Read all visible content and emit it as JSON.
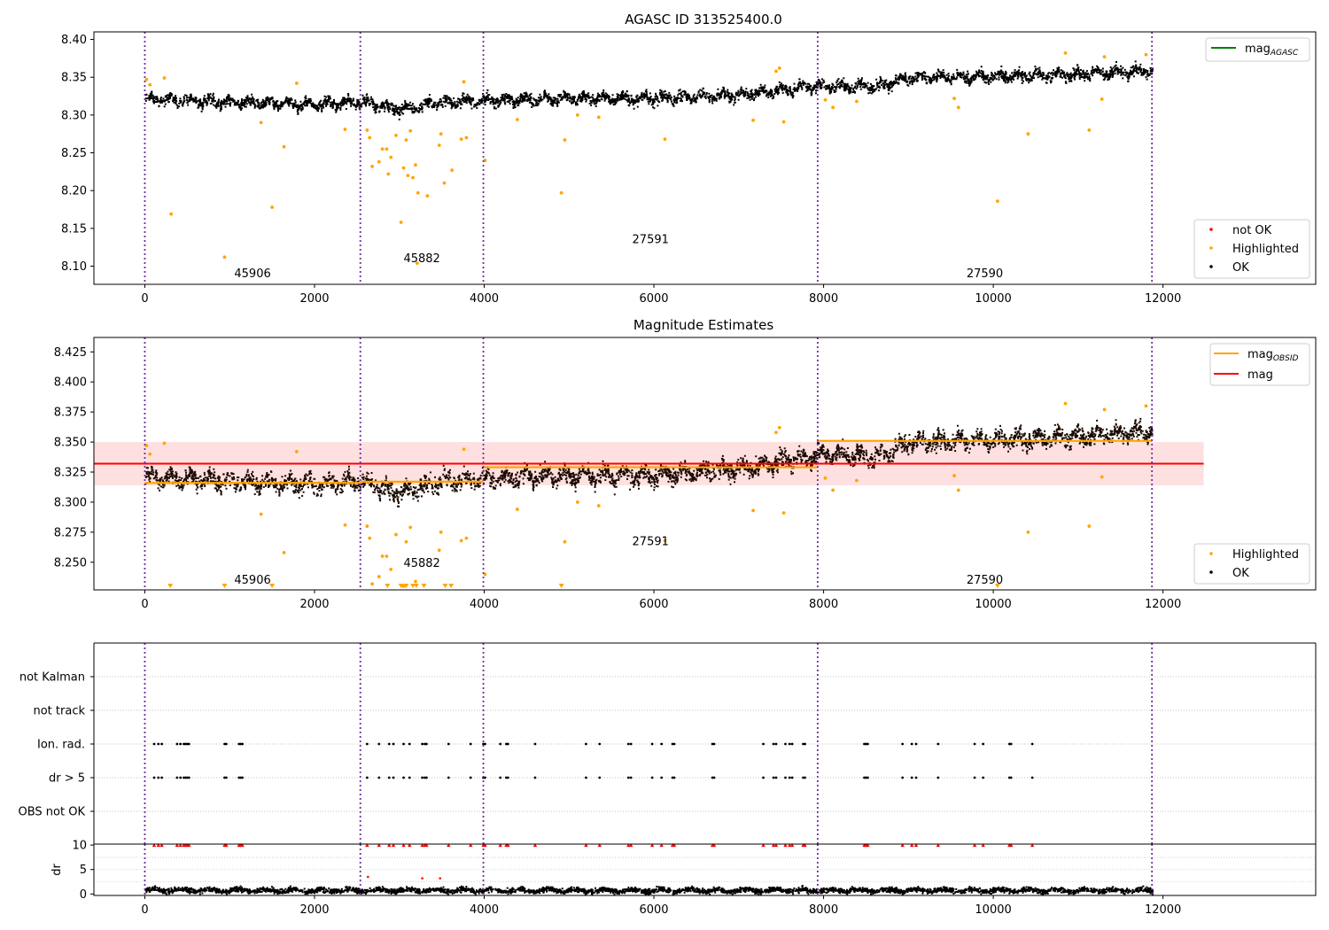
{
  "chart_data": [
    {
      "type": "scatter",
      "title": "AGASC ID 313525400.0",
      "xlabel": "",
      "ylabel": "",
      "xlim": [
        -600,
        13800
      ],
      "ylim": [
        8.076,
        8.41
      ],
      "grid": false,
      "x_ticks": [
        0,
        2000,
        4000,
        6000,
        8000,
        10000,
        12000
      ],
      "x_tick_labels": [
        "0",
        "2000",
        "4000",
        "6000",
        "8000",
        "10000",
        "12000"
      ],
      "y_ticks": [
        8.1,
        8.15,
        8.2,
        8.25,
        8.3,
        8.35,
        8.4
      ],
      "y_tick_labels": [
        "8.10",
        "8.15",
        "8.20",
        "8.25",
        "8.30",
        "8.35",
        "8.40"
      ],
      "obsid_boundaries": [
        0,
        2540,
        3990,
        7930,
        11870
      ],
      "obsid_labels": [
        {
          "text": "45906",
          "x": 1270,
          "y": 8.09
        },
        {
          "text": "45882",
          "x": 3265,
          "y": 8.11
        },
        {
          "text": "27591",
          "x": 5960,
          "y": 8.135
        },
        {
          "text": "27590",
          "x": 9900,
          "y": 8.09
        }
      ],
      "ok_trend": [
        {
          "x": 0,
          "y": 8.322
        },
        {
          "x": 1000,
          "y": 8.318
        },
        {
          "x": 2000,
          "y": 8.315
        },
        {
          "x": 2540,
          "y": 8.318
        },
        {
          "x": 3000,
          "y": 8.308
        },
        {
          "x": 3500,
          "y": 8.318
        },
        {
          "x": 4000,
          "y": 8.32
        },
        {
          "x": 5000,
          "y": 8.323
        },
        {
          "x": 6000,
          "y": 8.323
        },
        {
          "x": 7000,
          "y": 8.328
        },
        {
          "x": 7930,
          "y": 8.34
        },
        {
          "x": 8600,
          "y": 8.338
        },
        {
          "x": 9000,
          "y": 8.35
        },
        {
          "x": 10000,
          "y": 8.352
        },
        {
          "x": 11000,
          "y": 8.355
        },
        {
          "x": 11870,
          "y": 8.36
        }
      ],
      "ok_spread": 0.011,
      "highlighted_points": [
        [
          20,
          8.347
        ],
        [
          60,
          8.34
        ],
        [
          230,
          8.349
        ],
        [
          310,
          8.169
        ],
        [
          940,
          8.112
        ],
        [
          1370,
          8.29
        ],
        [
          1500,
          8.178
        ],
        [
          1640,
          8.258
        ],
        [
          1790,
          8.342
        ],
        [
          2360,
          8.281
        ],
        [
          2620,
          8.28
        ],
        [
          2650,
          8.27
        ],
        [
          2680,
          8.232
        ],
        [
          2760,
          8.238
        ],
        [
          2800,
          8.255
        ],
        [
          2850,
          8.255
        ],
        [
          2870,
          8.222
        ],
        [
          2900,
          8.244
        ],
        [
          2960,
          8.273
        ],
        [
          3020,
          8.158
        ],
        [
          3050,
          8.23
        ],
        [
          3080,
          8.267
        ],
        [
          3100,
          8.22
        ],
        [
          3130,
          8.279
        ],
        [
          3160,
          8.217
        ],
        [
          3190,
          8.234
        ],
        [
          3210,
          8.104
        ],
        [
          3220,
          8.197
        ],
        [
          3330,
          8.193
        ],
        [
          3470,
          8.26
        ],
        [
          3490,
          8.275
        ],
        [
          3530,
          8.21
        ],
        [
          3620,
          8.227
        ],
        [
          3730,
          8.268
        ],
        [
          3760,
          8.344
        ],
        [
          3790,
          8.27
        ],
        [
          4010,
          8.24
        ],
        [
          4390,
          8.294
        ],
        [
          4910,
          8.197
        ],
        [
          4950,
          8.267
        ],
        [
          5100,
          8.3
        ],
        [
          5350,
          8.297
        ],
        [
          6130,
          8.268
        ],
        [
          7170,
          8.293
        ],
        [
          7440,
          8.358
        ],
        [
          7480,
          8.362
        ],
        [
          7530,
          8.291
        ],
        [
          8020,
          8.32
        ],
        [
          8110,
          8.31
        ],
        [
          8390,
          8.318
        ],
        [
          9540,
          8.322
        ],
        [
          9590,
          8.31
        ],
        [
          10050,
          8.186
        ],
        [
          10410,
          8.275
        ],
        [
          10850,
          8.382
        ],
        [
          11130,
          8.28
        ],
        [
          11280,
          8.321
        ],
        [
          11310,
          8.377
        ],
        [
          11800,
          8.38
        ]
      ],
      "legends": [
        {
          "placement": "upper right",
          "entries": [
            {
              "label": "mag",
              "subscript": "AGASC",
              "color": "#008000",
              "kind": "line"
            }
          ]
        },
        {
          "placement": "lower right",
          "entries": [
            {
              "label": "not OK",
              "color": "#ff0000",
              "kind": "marker"
            },
            {
              "label": "Highlighted",
              "color": "#ffa500",
              "kind": "marker"
            },
            {
              "label": "OK",
              "color": "#000000",
              "kind": "marker"
            }
          ]
        }
      ]
    },
    {
      "type": "scatter",
      "title": "Magnitude Estimates",
      "xlabel": "",
      "ylabel": "",
      "xlim": [
        -600,
        13800
      ],
      "ylim": [
        8.227,
        8.437
      ],
      "grid": false,
      "x_ticks": [
        0,
        2000,
        4000,
        6000,
        8000,
        10000,
        12000
      ],
      "x_tick_labels": [
        "0",
        "2000",
        "4000",
        "6000",
        "8000",
        "10000",
        "12000"
      ],
      "y_ticks": [
        8.25,
        8.275,
        8.3,
        8.325,
        8.35,
        8.375,
        8.4,
        8.425
      ],
      "y_tick_labels": [
        "8.250",
        "8.275",
        "8.300",
        "8.325",
        "8.350",
        "8.375",
        "8.400",
        "8.425"
      ],
      "mag": {
        "value": 8.332,
        "band": [
          8.314,
          8.35
        ],
        "x_range": [
          -600,
          12480
        ],
        "color": "#ff0000"
      },
      "mag_obsid": [
        {
          "x_range": [
            0,
            2540
          ],
          "value": 8.316
        },
        {
          "x_range": [
            2540,
            3990
          ],
          "value": 8.317
        },
        {
          "x_range": [
            3990,
            7930
          ],
          "value": 8.329
        },
        {
          "x_range": [
            7930,
            11870
          ],
          "value": 8.351
        }
      ],
      "mag_obsid_color": "#ffa500",
      "below_range_markers": [
        300,
        940,
        1500,
        2860,
        3020,
        3080,
        3160,
        3200,
        3290,
        3540,
        3610,
        4910,
        10050
      ],
      "obsid_labels": [
        {
          "text": "45906",
          "x": 1270,
          "y": 8.235
        },
        {
          "text": "45882",
          "x": 3265,
          "y": 8.249
        },
        {
          "text": "27591",
          "x": 5960,
          "y": 8.267
        },
        {
          "text": "27590",
          "x": 9900,
          "y": 8.235
        }
      ],
      "legends": [
        {
          "placement": "upper right",
          "entries": [
            {
              "label": "mag",
              "subscript": "OBSID",
              "color": "#ffa500",
              "kind": "line"
            },
            {
              "label": "mag",
              "color": "#ff0000",
              "kind": "line"
            }
          ]
        },
        {
          "placement": "lower right",
          "entries": [
            {
              "label": "Highlighted",
              "color": "#ffa500",
              "kind": "marker"
            },
            {
              "label": "OK",
              "color": "#000000",
              "kind": "marker"
            }
          ]
        }
      ]
    },
    {
      "type": "scatter",
      "title": "",
      "xlabel": "",
      "ylabel": "",
      "xlim": [
        -600,
        13800
      ],
      "categories": [
        "not Kalman",
        "not track",
        "Ion. rad.",
        "dr > 5",
        "OBS not OK"
      ],
      "grid": true,
      "flag_events_x": [
        110,
        160,
        200,
        380,
        420,
        460,
        480,
        500,
        520,
        940,
        960,
        1110,
        1130,
        1150,
        2620,
        2760,
        2880,
        2930,
        3050,
        3120,
        3270,
        3300,
        3320,
        3580,
        3840,
        3990,
        4010,
        4190,
        4260,
        4280,
        4600,
        5200,
        5360,
        5700,
        5730,
        5980,
        6090,
        6220,
        6240,
        6690,
        6710,
        7290,
        7410,
        7440,
        7550,
        7600,
        7630,
        7760,
        7780,
        8480,
        8500,
        8520,
        8930,
        9040,
        9090,
        9350,
        9780,
        9880,
        10190,
        10210,
        10460
      ],
      "flag_rows": [
        "Ion. rad.",
        "dr > 5"
      ]
    },
    {
      "type": "scatter",
      "title": "",
      "xlabel": "",
      "ylabel": "dr",
      "xlim": [
        -600,
        13800
      ],
      "ylim": [
        -0.3,
        10.2
      ],
      "y_ticks": [
        0,
        5,
        10
      ],
      "y_tick_labels": [
        "0",
        "5",
        "10"
      ],
      "grid": true,
      "dr_typical": 0.9,
      "dr_spread": 0.5,
      "dr_moderate_points": [
        [
          2630,
          3.5
        ],
        [
          3270,
          3.2
        ],
        [
          3480,
          3.2
        ]
      ],
      "capped_markers_at": 10
    }
  ]
}
